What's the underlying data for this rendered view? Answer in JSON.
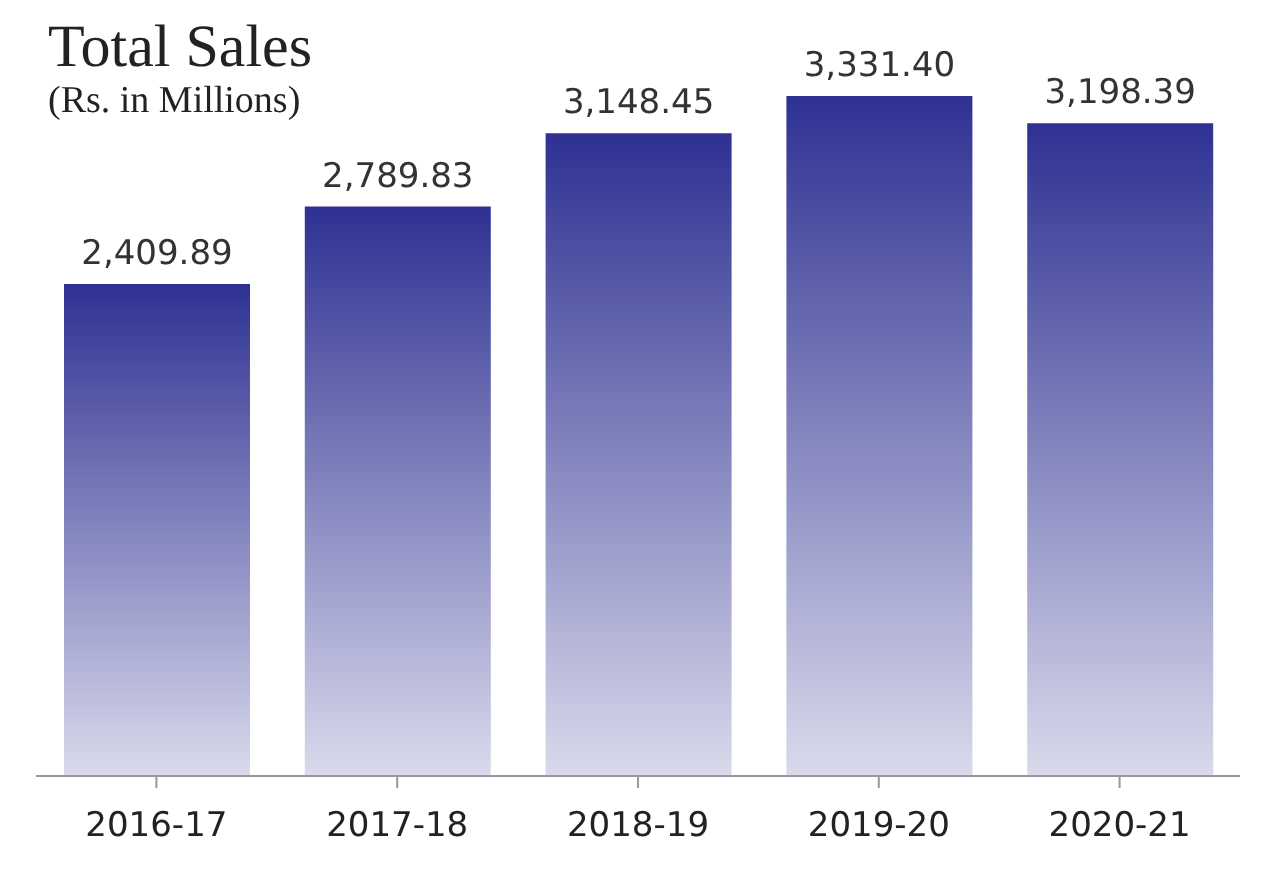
{
  "chart_data": {
    "type": "bar",
    "title": "Total Sales",
    "subtitle": "(Rs. in Millions)",
    "categories": [
      "2016-17",
      "2017-18",
      "2018-19",
      "2019-20",
      "2020-21"
    ],
    "values": [
      2409.89,
      2789.83,
      3148.45,
      3331.4,
      3198.39
    ],
    "value_labels": [
      "2,409.89",
      "2,789.83",
      "3,148.45",
      "3,331.40",
      "3,198.39"
    ],
    "color": "#2e3192",
    "grid": false,
    "legend": false
  }
}
